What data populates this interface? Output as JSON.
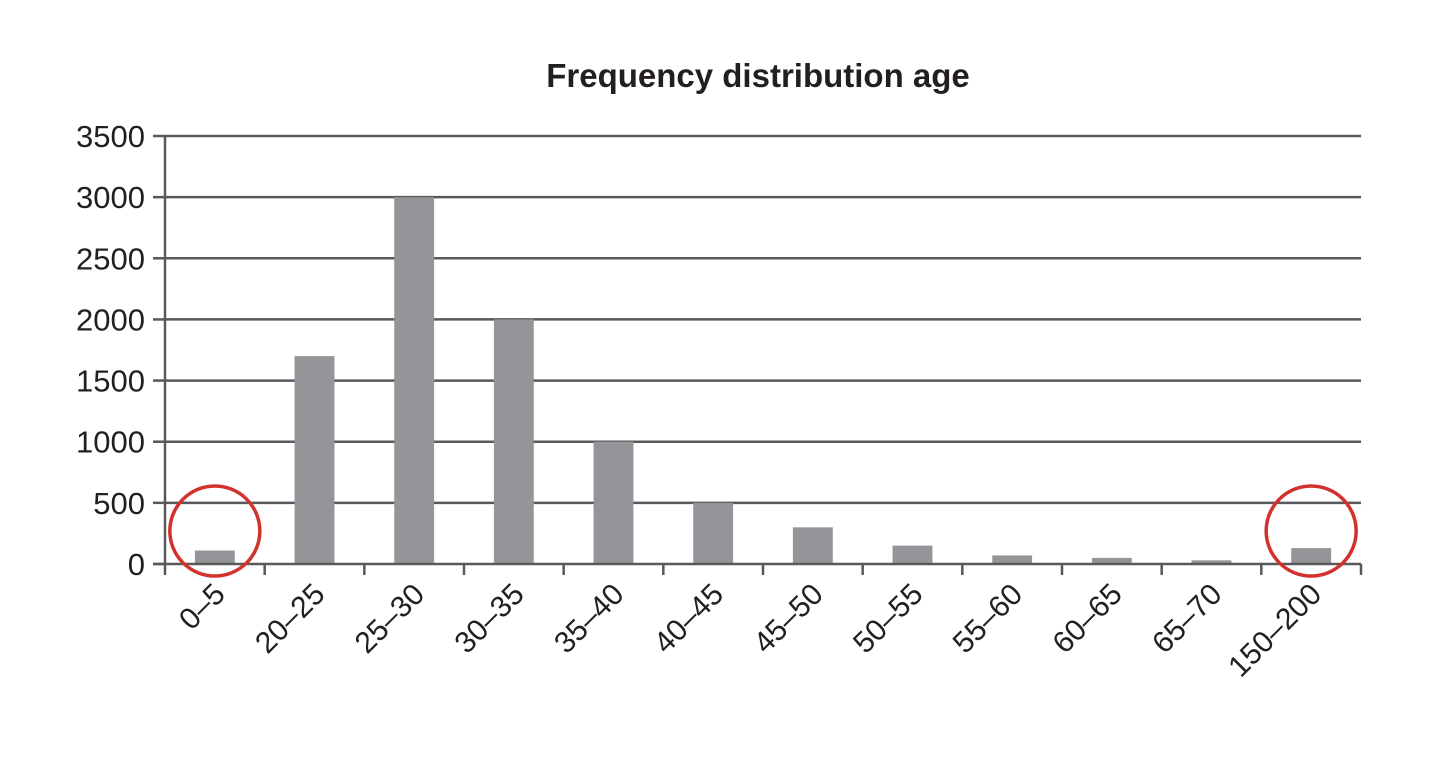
{
  "chart_data": {
    "type": "bar",
    "title": "Frequency distribution age",
    "xlabel": "",
    "ylabel": "",
    "categories": [
      "0–5",
      "20–25",
      "25–30",
      "30–35",
      "35–40",
      "40–45",
      "45–50",
      "50–55",
      "55–60",
      "60–65",
      "65–70",
      "150–200"
    ],
    "values": [
      110,
      1700,
      3000,
      2000,
      1000,
      500,
      300,
      150,
      70,
      50,
      30,
      130
    ],
    "ylim": [
      0,
      3500
    ],
    "yticks": [
      0,
      500,
      1000,
      1500,
      2000,
      2500,
      3000,
      3500
    ],
    "grid": true,
    "legend": "none",
    "bar_color": "#939598",
    "grid_color": "#58595b",
    "annotations": [
      {
        "type": "circle",
        "category": "0–5",
        "color": "#d2322d"
      },
      {
        "type": "circle",
        "category": "150–200",
        "color": "#d2322d"
      }
    ]
  }
}
